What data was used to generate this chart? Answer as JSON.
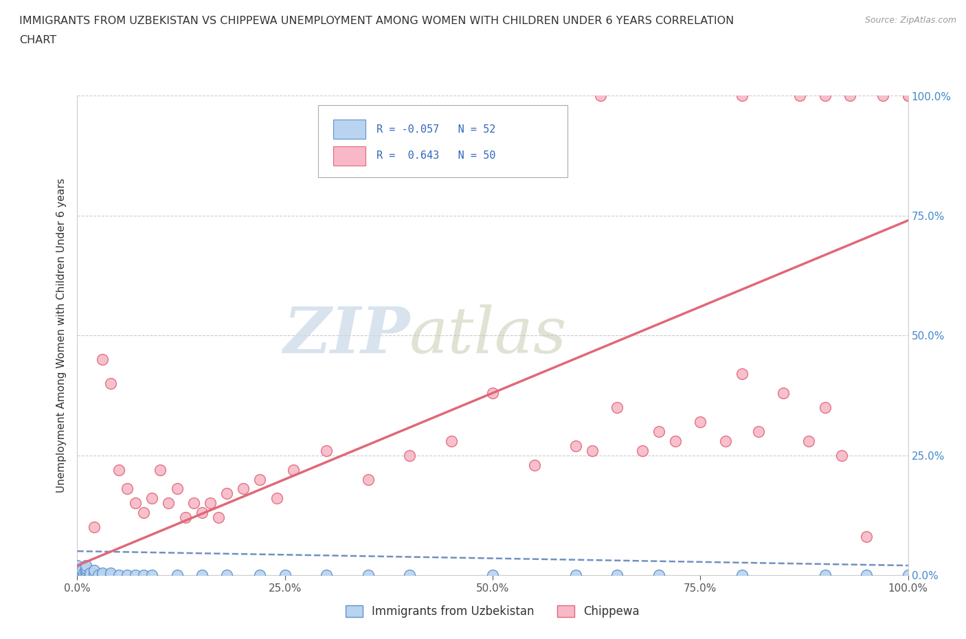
{
  "title_line1": "IMMIGRANTS FROM UZBEKISTAN VS CHIPPEWA UNEMPLOYMENT AMONG WOMEN WITH CHILDREN UNDER 6 YEARS CORRELATION",
  "title_line2": "CHART",
  "source": "Source: ZipAtlas.com",
  "ylabel": "Unemployment Among Women with Children Under 6 years",
  "xlim": [
    0,
    1.0
  ],
  "ylim": [
    0,
    1.0
  ],
  "color_uzbek_fill": "#b8d4f0",
  "color_uzbek_edge": "#6090c8",
  "color_chippewa_fill": "#f8b8c8",
  "color_chippewa_edge": "#e06878",
  "color_uzbek_line": "#7090c0",
  "color_chippewa_line": "#e06878",
  "watermark_zip": "ZIP",
  "watermark_atlas": "atlas",
  "uzbek_x": [
    0.0,
    0.0,
    0.0,
    0.0,
    0.0,
    0.0,
    0.0,
    0.0,
    0.0,
    0.0,
    0.005,
    0.005,
    0.005,
    0.008,
    0.008,
    0.01,
    0.01,
    0.01,
    0.01,
    0.01,
    0.01,
    0.015,
    0.015,
    0.02,
    0.02,
    0.02,
    0.025,
    0.03,
    0.03,
    0.04,
    0.04,
    0.05,
    0.06,
    0.07,
    0.08,
    0.09,
    0.12,
    0.15,
    0.18,
    0.22,
    0.25,
    0.3,
    0.35,
    0.4,
    0.5,
    0.6,
    0.65,
    0.7,
    0.8,
    0.9,
    0.95,
    1.0
  ],
  "uzbek_y": [
    0.0,
    0.0,
    0.0,
    0.0,
    0.0,
    0.005,
    0.005,
    0.01,
    0.01,
    0.02,
    0.0,
    0.005,
    0.01,
    0.0,
    0.005,
    0.0,
    0.0,
    0.005,
    0.01,
    0.015,
    0.02,
    0.0,
    0.005,
    0.0,
    0.005,
    0.01,
    0.0,
    0.0,
    0.005,
    0.0,
    0.005,
    0.0,
    0.0,
    0.0,
    0.0,
    0.0,
    0.0,
    0.0,
    0.0,
    0.0,
    0.0,
    0.0,
    0.0,
    0.0,
    0.0,
    0.0,
    0.0,
    0.0,
    0.0,
    0.0,
    0.0,
    0.0
  ],
  "chippewa_x": [
    0.02,
    0.03,
    0.04,
    0.05,
    0.06,
    0.07,
    0.08,
    0.09,
    0.1,
    0.11,
    0.12,
    0.13,
    0.14,
    0.15,
    0.16,
    0.17,
    0.18,
    0.2,
    0.22,
    0.24,
    0.26,
    0.3,
    0.35,
    0.4,
    0.45,
    0.5,
    0.55,
    0.6,
    0.62,
    0.65,
    0.68,
    0.7,
    0.72,
    0.75,
    0.78,
    0.8,
    0.82,
    0.85,
    0.88,
    0.9,
    0.92,
    0.95,
    0.63,
    0.8,
    0.87,
    0.9,
    0.93,
    0.97,
    1.0,
    1.0
  ],
  "chippewa_y": [
    0.1,
    0.45,
    0.4,
    0.22,
    0.18,
    0.15,
    0.13,
    0.16,
    0.22,
    0.15,
    0.18,
    0.12,
    0.15,
    0.13,
    0.15,
    0.12,
    0.17,
    0.18,
    0.2,
    0.16,
    0.22,
    0.26,
    0.2,
    0.25,
    0.28,
    0.38,
    0.23,
    0.27,
    0.26,
    0.35,
    0.26,
    0.3,
    0.28,
    0.32,
    0.28,
    0.42,
    0.3,
    0.38,
    0.28,
    0.35,
    0.25,
    0.08,
    1.0,
    1.0,
    1.0,
    1.0,
    1.0,
    1.0,
    1.0,
    1.0
  ],
  "uzbek_line_x": [
    0.0,
    1.0
  ],
  "uzbek_line_y": [
    0.05,
    0.02
  ],
  "chippewa_line_x": [
    0.0,
    1.0
  ],
  "chippewa_line_y": [
    0.02,
    0.74
  ]
}
